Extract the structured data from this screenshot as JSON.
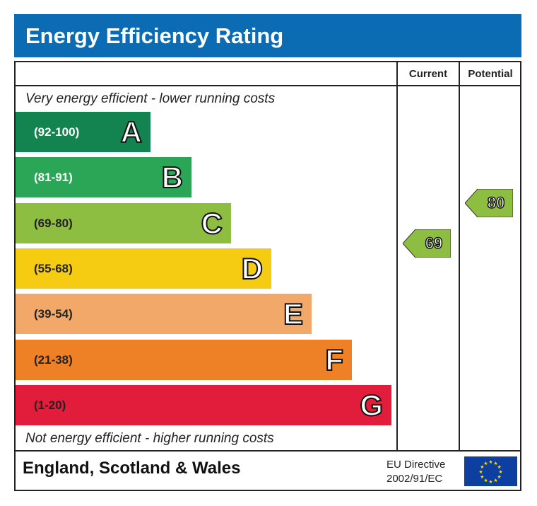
{
  "title": "Energy Efficiency Rating",
  "columns": {
    "current": "Current",
    "potential": "Potential"
  },
  "top_note": "Very energy efficient - lower running costs",
  "bottom_note": "Not energy efficient - higher running costs",
  "footer": {
    "country": "England, Scotland & Wales",
    "directive_line1": "EU Directive",
    "directive_line2": "2002/91/EC",
    "flag_icon": "eu-flag-icon"
  },
  "chart_data": {
    "type": "bar",
    "title": "Energy Efficiency Rating",
    "categories": [
      "A",
      "B",
      "C",
      "D",
      "E",
      "F",
      "G"
    ],
    "bands": [
      {
        "letter": "A",
        "range": "(92-100)",
        "color": "#13834f",
        "text_color": "#ffffff"
      },
      {
        "letter": "B",
        "range": "(81-91)",
        "color": "#2aa656",
        "text_color": "#ffffff"
      },
      {
        "letter": "C",
        "range": "(69-80)",
        "color": "#8dbd41",
        "text_color": "#222222"
      },
      {
        "letter": "D",
        "range": "(55-68)",
        "color": "#f6cc13",
        "text_color": "#222222"
      },
      {
        "letter": "E",
        "range": "(39-54)",
        "color": "#f2a869",
        "text_color": "#222222"
      },
      {
        "letter": "F",
        "range": "(21-38)",
        "color": "#ee8126",
        "text_color": "#222222"
      },
      {
        "letter": "G",
        "range": "(1-20)",
        "color": "#e21d3b",
        "text_color": "#222222"
      }
    ],
    "current": {
      "value": 69,
      "band": "C",
      "color": "#8dbd41"
    },
    "potential": {
      "value": 80,
      "band": "C",
      "color": "#8dbd41"
    }
  }
}
